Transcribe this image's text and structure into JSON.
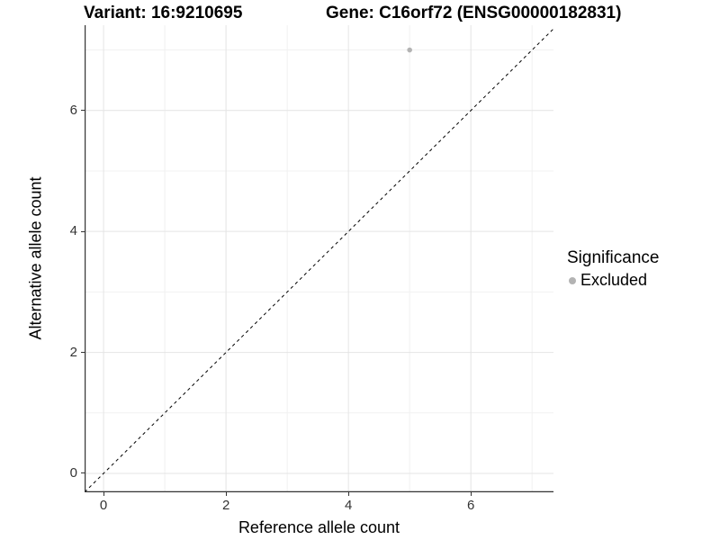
{
  "chart_data": {
    "type": "scatter",
    "titles": {
      "left": "Variant: 16:9210695",
      "right": "Gene: C16orf72 (ENSG00000182831)"
    },
    "xlabel": "Reference allele count",
    "ylabel": "Alternative allele count",
    "xlim": [
      -0.31,
      7.35
    ],
    "ylim": [
      -0.3125,
      7.41
    ],
    "xticks": [
      0,
      2,
      4,
      6
    ],
    "yticks": [
      0,
      2,
      4,
      6
    ],
    "xticks_minor": [
      1,
      3,
      5,
      7
    ],
    "yticks_minor": [
      1,
      3,
      5,
      7
    ],
    "grid": "major+minor",
    "series": [
      {
        "name": "Excluded",
        "points": [
          {
            "x": 5,
            "y": 7
          }
        ]
      }
    ],
    "reference_line": {
      "style": "dashed",
      "slope": 1,
      "intercept": 0,
      "color": "#000000"
    },
    "legend": {
      "title": "Significance",
      "position": "right",
      "entries": [
        {
          "label": "Excluded",
          "color": "#b3b3b3",
          "marker": "circle"
        }
      ]
    }
  },
  "colors": {
    "background": "#ffffff",
    "grid_major": "#e4e4e4",
    "grid_minor": "#f1f1f1",
    "axis_line": "#333333",
    "tick_label": "#333333",
    "point": "#b3b3b3",
    "text": "#000000"
  }
}
